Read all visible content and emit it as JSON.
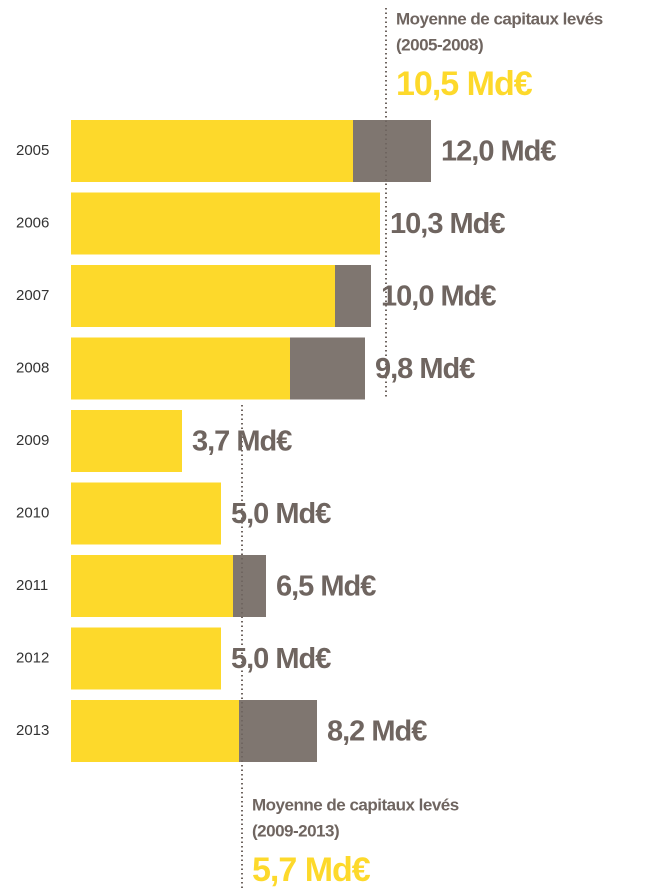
{
  "chart_data": {
    "type": "stacked-barh",
    "categories": [
      "2005",
      "2006",
      "2007",
      "2008",
      "2009",
      "2010",
      "2011",
      "2012",
      "2013"
    ],
    "series": [
      {
        "color": "#fdd92b",
        "values": [
          9.4,
          10.3,
          8.8,
          7.3,
          3.7,
          5.0,
          5.4,
          5.0,
          5.6
        ]
      },
      {
        "color": "#7f7670",
        "values": [
          2.6,
          0,
          1.2,
          2.5,
          0,
          0,
          1.1,
          0,
          2.6
        ]
      }
    ],
    "totals": [
      12.0,
      10.3,
      10.0,
      9.8,
      3.7,
      5.0,
      6.5,
      5.0,
      8.2
    ],
    "total_labels": [
      "12,0 Md€",
      "10,3 Md€",
      "10,0 Md€",
      "9,8 Md€",
      "3,7 Md€",
      "5,0 Md€",
      "6,5 Md€",
      "5,0 Md€",
      "8,2 Md€"
    ],
    "xlim": [
      0,
      12
    ],
    "annotations": [
      {
        "title": "Moyenne de capitaux levés",
        "period": "(2005-2008)",
        "value": 10.5,
        "value_label": "10,5 Md€"
      },
      {
        "title": "Moyenne de capitaux levés",
        "period": "(2009-2013)",
        "value": 5.7,
        "value_label": "5,7 Md€"
      }
    ]
  }
}
